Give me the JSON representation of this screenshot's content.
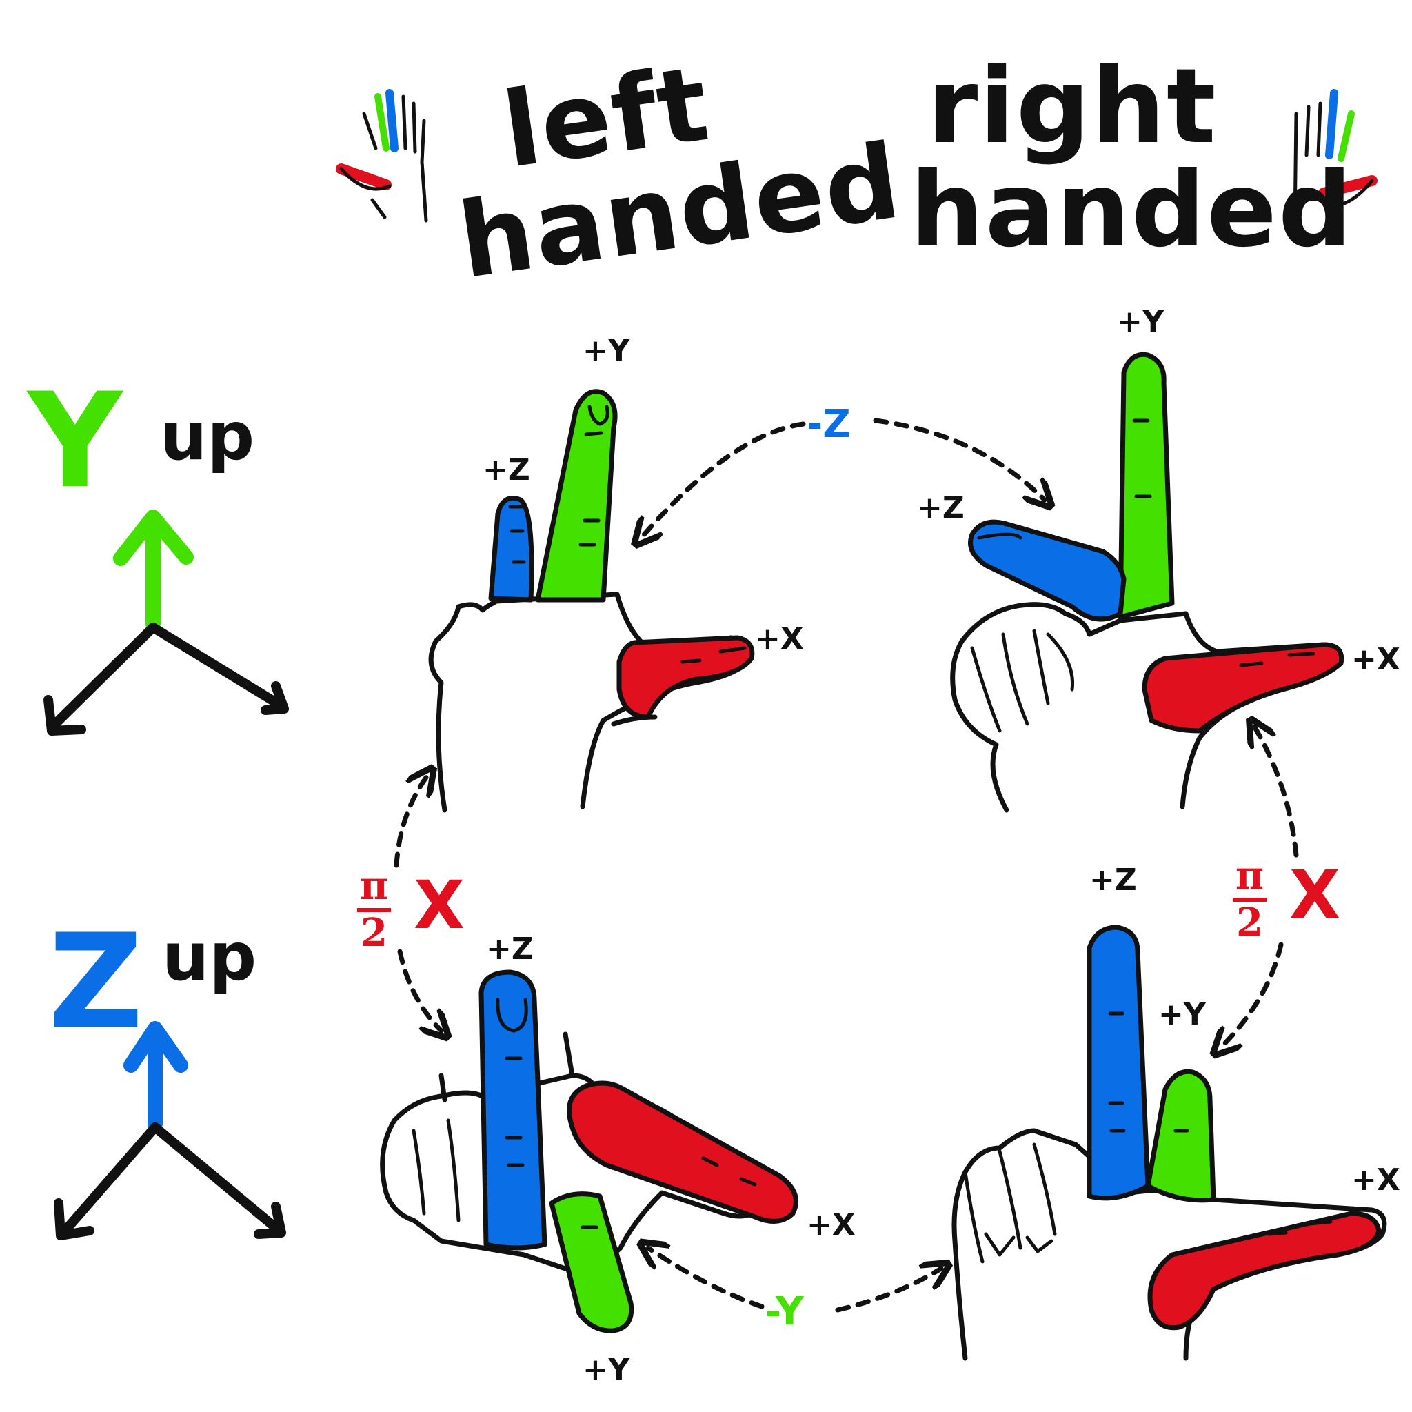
{
  "colors": {
    "x_axis": "#e0101f",
    "y_axis": "#44e000",
    "z_axis": "#0a6fe6",
    "ink": "#111111"
  },
  "titles": {
    "left": "left\nhanded",
    "right": "right\nhanded"
  },
  "rows": {
    "y_up": {
      "letter": "Y",
      "word": "up"
    },
    "z_up": {
      "letter": "Z",
      "word": "up"
    }
  },
  "hands": {
    "left_y_up": {
      "x": "+X",
      "y": "+Y",
      "z": "+Z"
    },
    "right_y_up": {
      "x": "+X",
      "y": "+Y",
      "z": "+Z"
    },
    "left_z_up": {
      "x": "+X",
      "y": "+Y",
      "z": "+Z"
    },
    "right_z_up": {
      "x": "+X",
      "y": "+Y",
      "z": "+Z"
    }
  },
  "conversions": {
    "top": "-Z",
    "bottom": "-Y",
    "left_rot": {
      "num": "π",
      "den": "2",
      "axis": "X"
    },
    "right_rot": {
      "num": "π",
      "den": "2",
      "axis": "X"
    }
  },
  "icons": [
    "left-hand-icon",
    "right-hand-icon"
  ]
}
